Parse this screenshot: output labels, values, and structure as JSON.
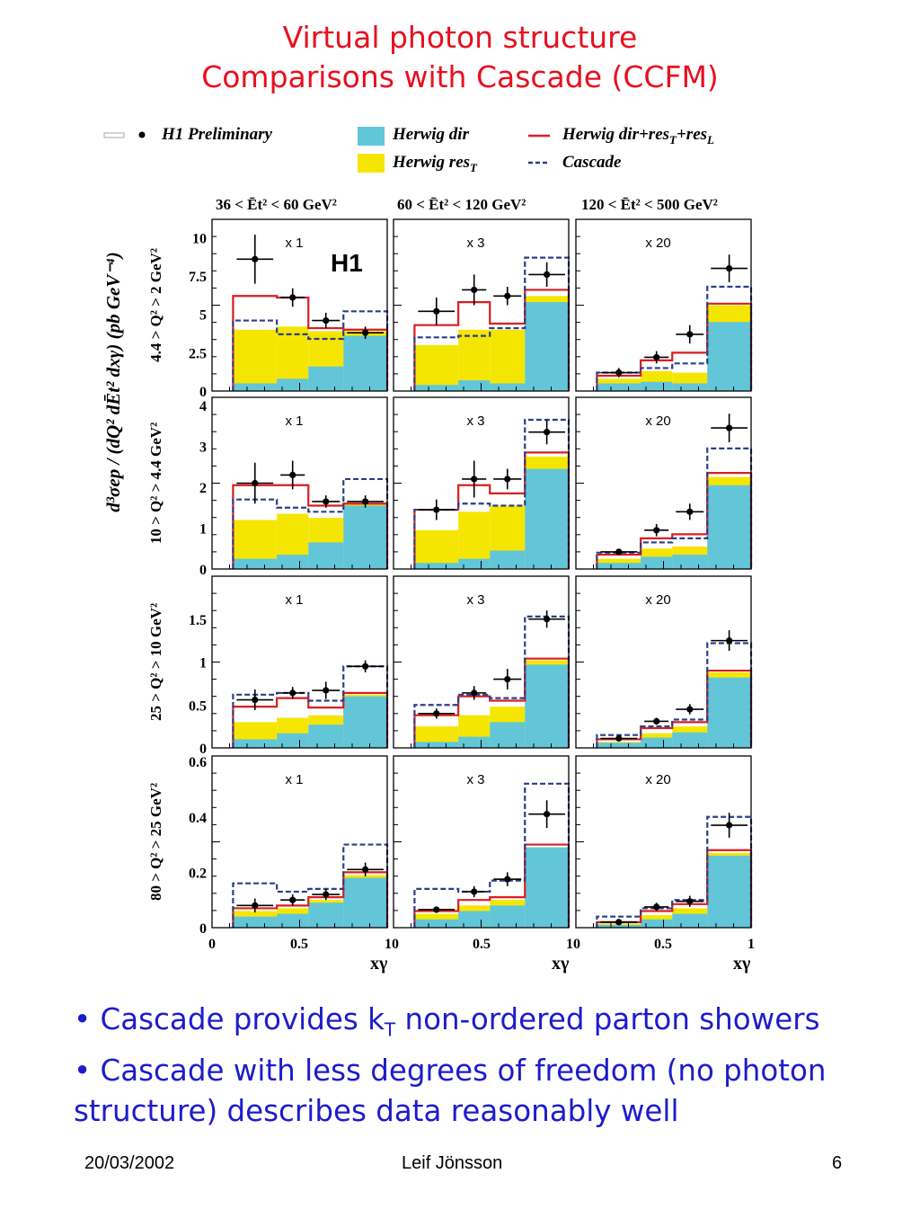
{
  "title_line1": "Virtual photon structure",
  "title_line2": "Comparisons with Cascade (CCFM)",
  "bullets": [
    {
      "pre": "• Cascade provides k",
      "sub": "T",
      "post": " non-ordered parton showers"
    },
    {
      "text": "• Cascade with less degrees of freedom (no photon structure) describes data reasonably well"
    }
  ],
  "footer": {
    "date": "20/03/2002",
    "author": "Leif Jönsson",
    "page": "6"
  },
  "chart_data": {
    "type": "bar",
    "experiment_label": "H1",
    "ylabel": "d³σep / (dQ² dĒt² dxγ)   (pb GeV⁻⁴)",
    "xlabel": "xγ",
    "x_ticks": [
      "0",
      "0.5",
      "10",
      "0.5",
      "10",
      "0.5",
      "1"
    ],
    "bins": [
      [
        0.12,
        0.37
      ],
      [
        0.37,
        0.55
      ],
      [
        0.55,
        0.75
      ],
      [
        0.75,
        1.0
      ]
    ],
    "legend": {
      "data": "H1 Preliminary",
      "dir": "Herwig dir",
      "res_t": "Herwig resT",
      "total": "Herwig dir+resT+resL",
      "cascade": "Cascade"
    },
    "colors": {
      "dir": "#62c6d8",
      "res_t": "#f5e602",
      "total": "#d81e22",
      "cascade": "#2b3f86",
      "data": "#000000"
    },
    "columns": [
      {
        "label": "36 < Ēt² < 60 GeV²",
        "scale": "x 1"
      },
      {
        "label": "60 < Ēt² < 120 GeV²",
        "scale": "x 3"
      },
      {
        "label": "120 < Ēt² < 500 GeV²",
        "scale": "x 20"
      }
    ],
    "rows": [
      {
        "label": "4.4 > Q² > 2 GeV²",
        "ylim": [
          0,
          11.2
        ],
        "yticks": [
          "0",
          "2.5",
          "5",
          "7.5",
          "10"
        ],
        "ytick_values": [
          0,
          2.5,
          5,
          7.5,
          10
        ],
        "panels": [
          {
            "dir": [
              0.5,
              0.8,
              1.6,
              3.6
            ],
            "res_t": [
              4.0,
              4.2,
              3.9,
              3.9
            ],
            "total": [
              6.2,
              6.1,
              4.1,
              4.0
            ],
            "cascade": [
              4.6,
              3.7,
              3.4,
              5.2
            ],
            "data": [
              8.6,
              6.1,
              4.6,
              3.8
            ],
            "err": [
              1.6,
              0.6,
              0.5,
              0.4
            ]
          },
          {
            "dir": [
              0.4,
              0.7,
              0.5,
              5.8
            ],
            "res_t": [
              3.0,
              4.0,
              4.0,
              6.2
            ],
            "total": [
              4.3,
              5.8,
              4.4,
              6.6
            ],
            "cascade": [
              3.5,
              3.6,
              4.1,
              8.7
            ],
            "data": [
              5.2,
              6.6,
              6.2,
              7.6
            ],
            "err": [
              0.9,
              1.0,
              0.6,
              0.8
            ]
          },
          {
            "dir": [
              0.5,
              0.6,
              0.5,
              4.5
            ],
            "res_t": [
              0.8,
              1.3,
              1.2,
              5.6
            ],
            "total": [
              1.0,
              2.0,
              2.5,
              5.7
            ],
            "cascade": [
              1.2,
              1.5,
              1.8,
              6.8
            ],
            "data": [
              1.2,
              2.2,
              3.7,
              8.0
            ],
            "err": [
              0.3,
              0.4,
              0.6,
              0.9
            ]
          }
        ]
      },
      {
        "label": "10 > Q² > 4.4 GeV²",
        "ylim": [
          0,
          4.2
        ],
        "yticks": [
          "0",
          "1",
          "2",
          "3",
          "4"
        ],
        "ytick_values": [
          0,
          1,
          2,
          3,
          4
        ],
        "panels": [
          {
            "dir": [
              0.25,
              0.35,
              0.65,
              1.55
            ],
            "res_t": [
              1.2,
              1.35,
              1.25,
              1.6
            ],
            "total": [
              2.05,
              2.05,
              1.55,
              1.6
            ],
            "cascade": [
              1.7,
              1.5,
              1.4,
              2.2
            ],
            "data": [
              2.1,
              2.3,
              1.65,
              1.65
            ],
            "err": [
              0.5,
              0.35,
              0.15,
              0.15
            ]
          },
          {
            "dir": [
              0.15,
              0.25,
              0.45,
              2.45
            ],
            "res_t": [
              0.95,
              1.4,
              1.55,
              2.75
            ],
            "total": [
              1.45,
              2.05,
              1.85,
              2.85
            ],
            "cascade": [
              1.45,
              1.6,
              1.55,
              3.65
            ],
            "data": [
              1.45,
              2.2,
              2.2,
              3.35
            ],
            "err": [
              0.25,
              0.45,
              0.25,
              0.3
            ]
          },
          {
            "dir": [
              0.15,
              0.3,
              0.35,
              2.05
            ],
            "res_t": [
              0.25,
              0.5,
              0.55,
              2.25
            ],
            "total": [
              0.35,
              0.75,
              0.85,
              2.35
            ],
            "cascade": [
              0.4,
              0.65,
              0.75,
              2.95
            ],
            "data": [
              0.42,
              0.95,
              1.4,
              3.45
            ],
            "err": [
              0.05,
              0.15,
              0.2,
              0.35
            ]
          }
        ]
      },
      {
        "label": "25 > Q² > 10 GeV²",
        "ylim": [
          0,
          2.0
        ],
        "yticks": [
          "0",
          "0.5",
          "1",
          "1.5"
        ],
        "ytick_values": [
          0,
          0.5,
          1.0,
          1.5
        ],
        "panels": [
          {
            "dir": [
              0.1,
              0.17,
              0.27,
              0.6
            ],
            "res_t": [
              0.3,
              0.35,
              0.38,
              0.62
            ],
            "total": [
              0.48,
              0.58,
              0.47,
              0.64
            ],
            "cascade": [
              0.62,
              0.64,
              0.55,
              0.95
            ],
            "data": [
              0.56,
              0.64,
              0.67,
              0.95
            ],
            "err": [
              0.12,
              0.07,
              0.1,
              0.07
            ]
          },
          {
            "dir": [
              0.07,
              0.13,
              0.3,
              0.97
            ],
            "res_t": [
              0.25,
              0.38,
              0.48,
              1.02
            ],
            "total": [
              0.38,
              0.6,
              0.55,
              1.04
            ],
            "cascade": [
              0.5,
              0.62,
              0.58,
              1.53
            ],
            "data": [
              0.4,
              0.64,
              0.8,
              1.5
            ],
            "err": [
              0.06,
              0.08,
              0.12,
              0.1
            ]
          },
          {
            "dir": [
              0.06,
              0.12,
              0.18,
              0.82
            ],
            "res_t": [
              0.07,
              0.17,
              0.25,
              0.88
            ],
            "total": [
              0.1,
              0.23,
              0.3,
              0.9
            ],
            "cascade": [
              0.15,
              0.25,
              0.33,
              1.22
            ],
            "data": [
              0.11,
              0.31,
              0.45,
              1.25
            ],
            "err": [
              0.03,
              0.04,
              0.06,
              0.12
            ]
          }
        ]
      },
      {
        "label": "80 > Q² > 25 GeV²",
        "ylim": [
          0,
          0.62
        ],
        "yticks": [
          "0",
          "0.2",
          "0.4",
          "0.6"
        ],
        "ytick_values": [
          0,
          0.2,
          0.4,
          0.6
        ],
        "panels": [
          {
            "dir": [
              0.04,
              0.05,
              0.09,
              0.18
            ],
            "res_t": [
              0.06,
              0.07,
              0.1,
              0.19
            ],
            "total": [
              0.07,
              0.08,
              0.11,
              0.2
            ],
            "cascade": [
              0.16,
              0.13,
              0.14,
              0.3
            ],
            "data": [
              0.08,
              0.1,
              0.12,
              0.21
            ],
            "err": [
              0.025,
              0.02,
              0.02,
              0.025
            ]
          },
          {
            "dir": [
              0.03,
              0.06,
              0.08,
              0.29
            ],
            "res_t": [
              0.05,
              0.08,
              0.1,
              0.29
            ],
            "total": [
              0.06,
              0.1,
              0.11,
              0.3
            ],
            "cascade": [
              0.14,
              0.13,
              0.17,
              0.52
            ],
            "data": [
              0.065,
              0.13,
              0.175,
              0.41
            ],
            "err": [
              0.01,
              0.02,
              0.025,
              0.05
            ]
          },
          {
            "dir": [
              0.01,
              0.03,
              0.05,
              0.26
            ],
            "res_t": [
              0.015,
              0.045,
              0.07,
              0.27
            ],
            "total": [
              0.02,
              0.06,
              0.085,
              0.28
            ],
            "cascade": [
              0.04,
              0.07,
              0.1,
              0.4
            ],
            "data": [
              0.02,
              0.075,
              0.095,
              0.37
            ],
            "err": [
              0.005,
              0.015,
              0.02,
              0.045
            ]
          }
        ]
      }
    ]
  }
}
